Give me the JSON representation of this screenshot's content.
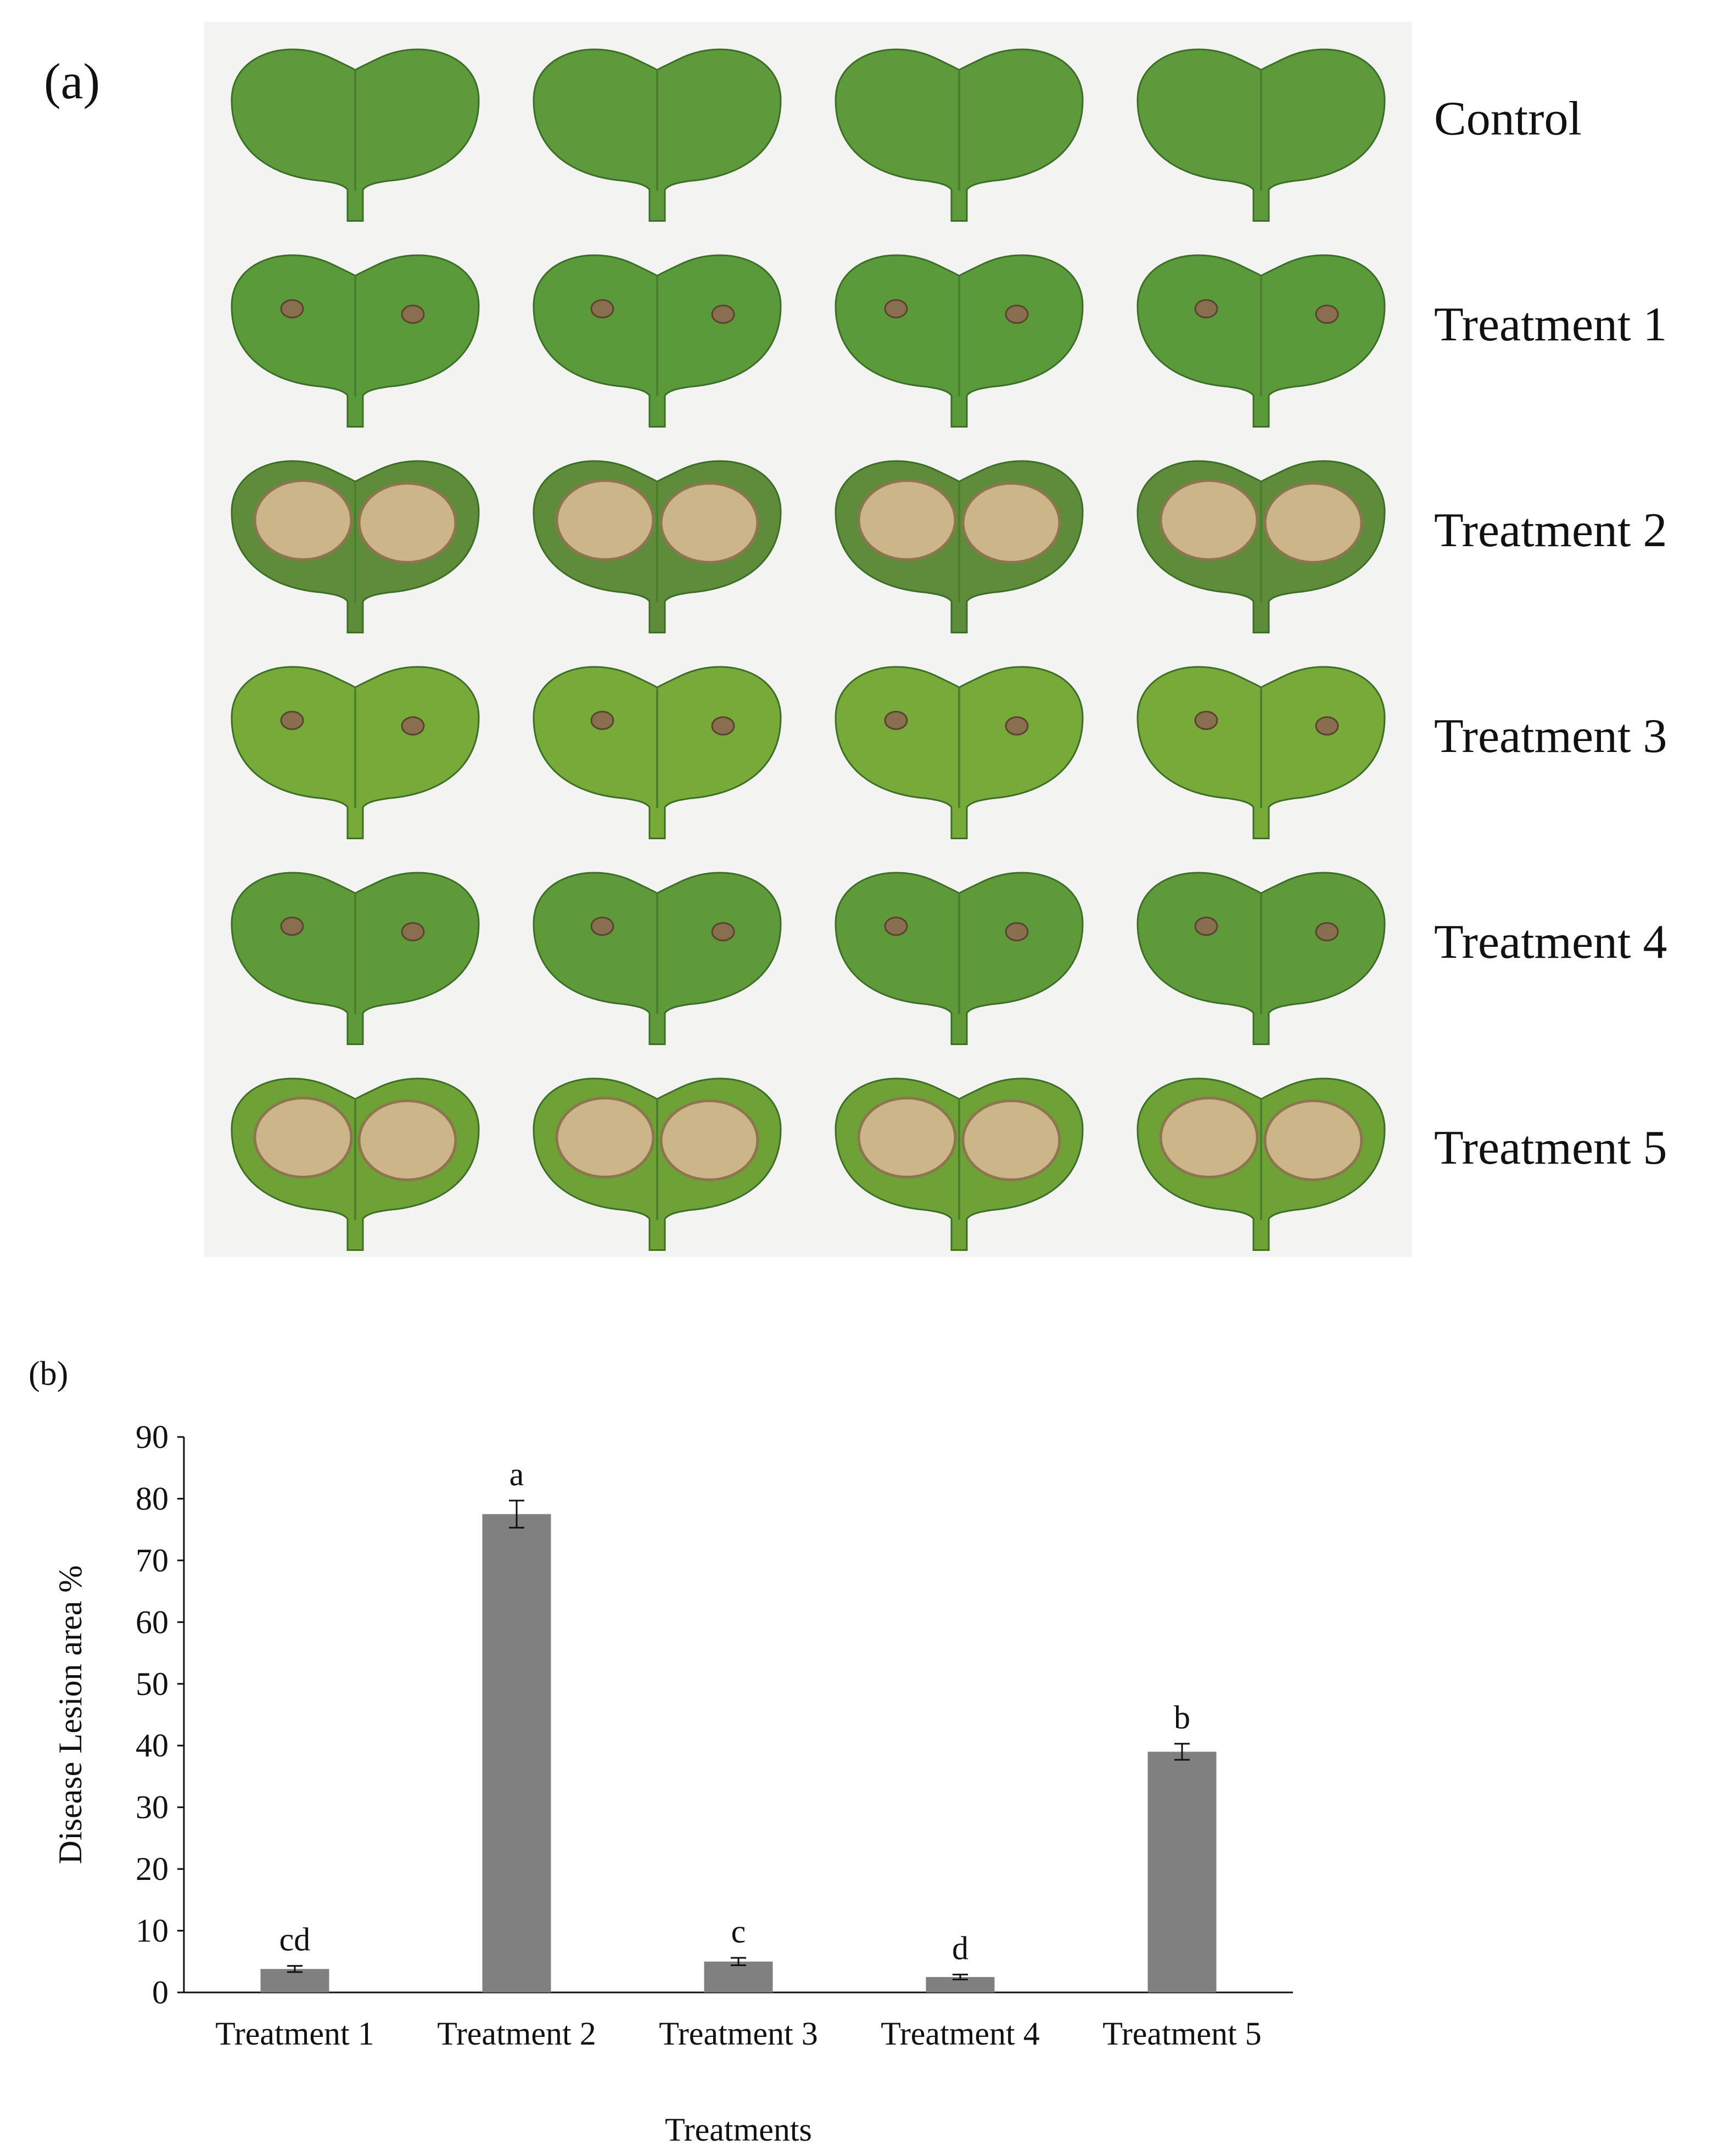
{
  "panel_a": {
    "label": "(a)",
    "rows": [
      {
        "label": "Control",
        "lesion": "none",
        "tint": "#5c9a3c"
      },
      {
        "label": "Treatment 1",
        "lesion": "small",
        "tint": "#5a9a3a"
      },
      {
        "label": "Treatment 2",
        "lesion": "large",
        "tint": "#5e8c3a"
      },
      {
        "label": "Treatment 3",
        "lesion": "small",
        "tint": "#77aa38"
      },
      {
        "label": "Treatment 4",
        "lesion": "small",
        "tint": "#5e9a3a"
      },
      {
        "label": "Treatment 5",
        "lesion": "large",
        "tint": "#6ea236"
      }
    ]
  },
  "panel_b": {
    "label": "(b)",
    "chart_data": {
      "type": "bar",
      "categories": [
        "Treatment 1",
        "Treatment 2",
        "Treatment 3",
        "Treatment 4",
        "Treatment 5"
      ],
      "values": [
        3.8,
        77.5,
        5.0,
        2.5,
        39.0
      ],
      "errors": [
        0.5,
        2.2,
        0.6,
        0.4,
        1.3
      ],
      "significance": [
        "cd",
        "a",
        "c",
        "d",
        "b"
      ],
      "xlabel": "Treatments",
      "ylabel": "Disease Lesion area %",
      "ylim": [
        0,
        90
      ],
      "yticks": [
        0,
        10,
        20,
        30,
        40,
        50,
        60,
        70,
        80,
        90
      ],
      "bar_color": "#808080",
      "grid": false,
      "legend": "none"
    }
  }
}
